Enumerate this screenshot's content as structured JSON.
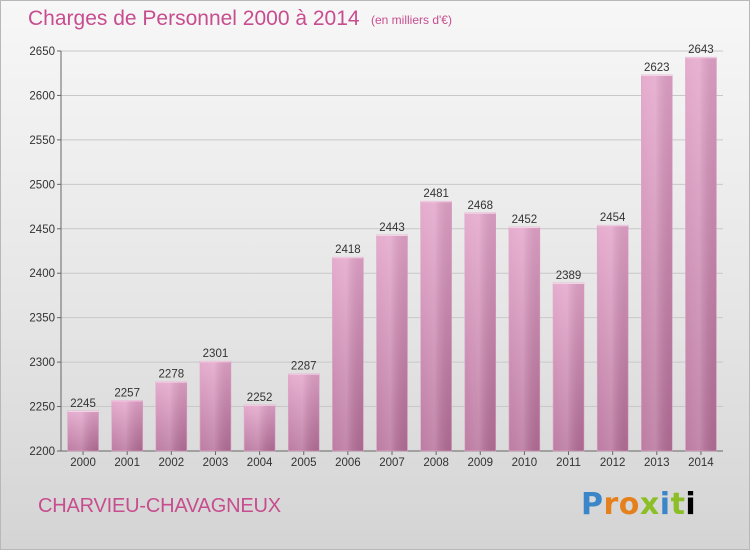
{
  "header": {
    "title": "Charges de Personnel 2000 à 2014",
    "unit_note": "(en milliers d'€)"
  },
  "footer": {
    "commune": "CHARVIEU-CHAVAGNEUX",
    "logo_text": "Proxiti"
  },
  "colors": {
    "bar_top": "#e3a3c9",
    "bar_bottom": "#b56e98",
    "text_accent": "#c74d8f",
    "grid": "#c8c8c8"
  },
  "chart_data": {
    "type": "bar",
    "title": "Charges de Personnel 2000 à 2014",
    "subtitle": "(en milliers d'€)",
    "xlabel": "",
    "ylabel": "",
    "categories": [
      "2000",
      "2001",
      "2002",
      "2003",
      "2004",
      "2005",
      "2006",
      "2007",
      "2008",
      "2009",
      "2010",
      "2011",
      "2012",
      "2013",
      "2014"
    ],
    "values": [
      2245,
      2257,
      2278,
      2301,
      2252,
      2287,
      2418,
      2443,
      2481,
      2468,
      2452,
      2389,
      2454,
      2623,
      2643
    ],
    "ylim": [
      2200,
      2650
    ],
    "yticks": [
      2200,
      2250,
      2300,
      2350,
      2400,
      2450,
      2500,
      2550,
      2600,
      2650
    ],
    "grid": true,
    "data_labels": true
  }
}
